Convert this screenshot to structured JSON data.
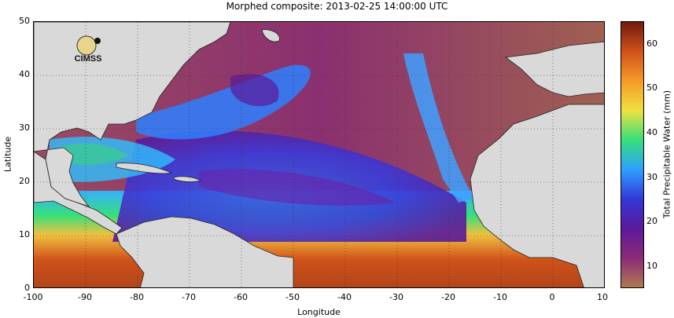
{
  "title": "Morphed composite: 2013-02-25 14:00:00 UTC",
  "axes": {
    "xlabel": "Longitude",
    "ylabel": "Latitude",
    "xticks": [
      "-100",
      "-90",
      "-80",
      "-70",
      "-60",
      "-50",
      "-40",
      "-30",
      "-20",
      "-10",
      "0",
      "10"
    ],
    "yticks": [
      "50",
      "40",
      "30",
      "20",
      "10",
      "0"
    ]
  },
  "colorbar": {
    "title": "Total Precipitable Water (mm)",
    "ticks": [
      "60",
      "50",
      "40",
      "30",
      "20",
      "10"
    ],
    "range_mm": [
      5,
      65
    ],
    "colors": [
      "#b07a52",
      "#8c2a78",
      "#5a1a9a",
      "#3338d8",
      "#2ea0ff",
      "#36e07a",
      "#f0e040",
      "#f59a28",
      "#d0521a",
      "#6e1a0e"
    ]
  },
  "map": {
    "lon_range": [
      -100,
      10
    ],
    "lat_range": [
      0,
      50
    ],
    "land_color": "#d9d9d9",
    "grid_style": "dotted",
    "logo_text": "CIMSS"
  }
}
